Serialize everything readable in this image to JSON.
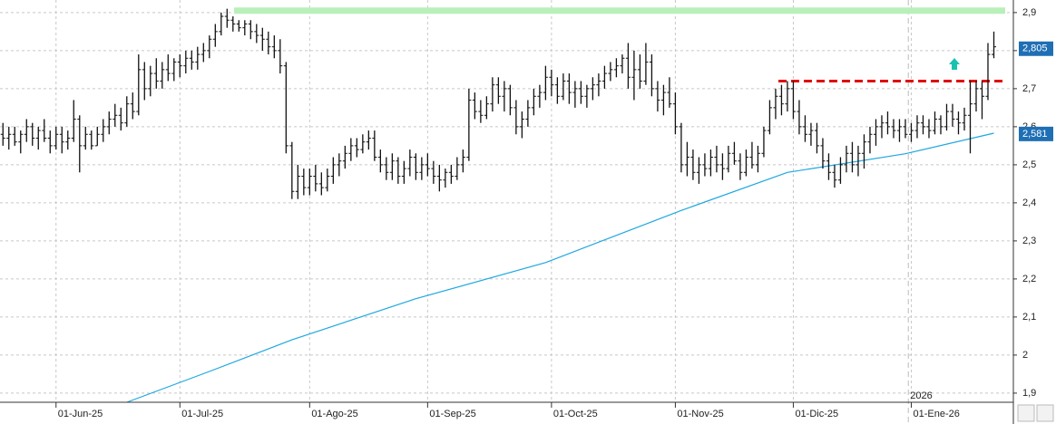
{
  "chart_data": {
    "type": "ohlc",
    "xlim": [
      -0.5,
      171
    ],
    "xticks": [
      {
        "value": 9,
        "label": "01-Jun-25"
      },
      {
        "value": 30,
        "label": "01-Jul-25"
      },
      {
        "value": 52,
        "label": "01-Ago-25"
      },
      {
        "value": 72,
        "label": "01-Sep-25"
      },
      {
        "value": 93,
        "label": "01-Oct-25"
      },
      {
        "value": 114,
        "label": "01-Nov-25"
      },
      {
        "value": 134,
        "label": "01-Dic-25"
      },
      {
        "value": 154,
        "label": "01-Ene-26"
      }
    ],
    "ylim": [
      1.876,
      2.933
    ],
    "yticks": [
      {
        "value": 1.9,
        "label": "1,9"
      },
      {
        "value": 2,
        "label": "2"
      },
      {
        "value": 2.1,
        "label": "2,1"
      },
      {
        "value": 2.2,
        "label": "2,2"
      },
      {
        "value": 2.3,
        "label": "2,3"
      },
      {
        "value": 2.4,
        "label": "2,4"
      },
      {
        "value": 2.5,
        "label": "2,5"
      },
      {
        "value": 2.6,
        "label": "2,6"
      },
      {
        "value": 2.7,
        "label": "2,7"
      },
      {
        "value": 2.8,
        "label": "2,8"
      },
      {
        "value": 2.9,
        "label": "2,9"
      }
    ],
    "grid": true,
    "bar_color": "#111111",
    "ohlc": [
      [
        2.58,
        2.61,
        2.55,
        2.57
      ],
      [
        2.57,
        2.6,
        2.54,
        2.58
      ],
      [
        2.58,
        2.6,
        2.55,
        2.56
      ],
      [
        2.56,
        2.59,
        2.53,
        2.58
      ],
      [
        2.58,
        2.62,
        2.56,
        2.6
      ],
      [
        2.6,
        2.61,
        2.55,
        2.57
      ],
      [
        2.57,
        2.6,
        2.54,
        2.59
      ],
      [
        2.59,
        2.62,
        2.56,
        2.57
      ],
      [
        2.57,
        2.59,
        2.53,
        2.55
      ],
      [
        2.55,
        2.6,
        2.54,
        2.58
      ],
      [
        2.58,
        2.6,
        2.53,
        2.56
      ],
      [
        2.56,
        2.59,
        2.54,
        2.57
      ],
      [
        2.57,
        2.67,
        2.56,
        2.62
      ],
      [
        2.62,
        2.63,
        2.48,
        2.55
      ],
      [
        2.55,
        2.6,
        2.54,
        2.58
      ],
      [
        2.58,
        2.59,
        2.54,
        2.55
      ],
      [
        2.55,
        2.6,
        2.55,
        2.58
      ],
      [
        2.58,
        2.62,
        2.56,
        2.6
      ],
      [
        2.6,
        2.64,
        2.58,
        2.62
      ],
      [
        2.62,
        2.66,
        2.6,
        2.63
      ],
      [
        2.63,
        2.65,
        2.59,
        2.61
      ],
      [
        2.61,
        2.68,
        2.6,
        2.66
      ],
      [
        2.66,
        2.69,
        2.62,
        2.64
      ],
      [
        2.64,
        2.79,
        2.63,
        2.75
      ],
      [
        2.75,
        2.77,
        2.67,
        2.7
      ],
      [
        2.7,
        2.76,
        2.68,
        2.74
      ],
      [
        2.74,
        2.78,
        2.7,
        2.72
      ],
      [
        2.72,
        2.77,
        2.7,
        2.75
      ],
      [
        2.75,
        2.79,
        2.72,
        2.74
      ],
      [
        2.74,
        2.78,
        2.72,
        2.77
      ],
      [
        2.77,
        2.79,
        2.73,
        2.76
      ],
      [
        2.76,
        2.8,
        2.74,
        2.78
      ],
      [
        2.78,
        2.8,
        2.75,
        2.77
      ],
      [
        2.77,
        2.81,
        2.75,
        2.79
      ],
      [
        2.79,
        2.82,
        2.77,
        2.8
      ],
      [
        2.8,
        2.84,
        2.78,
        2.83
      ],
      [
        2.83,
        2.87,
        2.81,
        2.85
      ],
      [
        2.85,
        2.9,
        2.84,
        2.89
      ],
      [
        2.89,
        2.91,
        2.86,
        2.88
      ],
      [
        2.88,
        2.89,
        2.85,
        2.87
      ],
      [
        2.87,
        2.88,
        2.85,
        2.86
      ],
      [
        2.86,
        2.88,
        2.84,
        2.87
      ],
      [
        2.87,
        2.88,
        2.83,
        2.85
      ],
      [
        2.85,
        2.87,
        2.82,
        2.84
      ],
      [
        2.84,
        2.86,
        2.8,
        2.83
      ],
      [
        2.83,
        2.85,
        2.79,
        2.81
      ],
      [
        2.81,
        2.84,
        2.78,
        2.8
      ],
      [
        2.8,
        2.83,
        2.74,
        2.76
      ],
      [
        2.76,
        2.77,
        2.53,
        2.55
      ],
      [
        2.55,
        2.56,
        2.41,
        2.43
      ],
      [
        2.43,
        2.5,
        2.41,
        2.47
      ],
      [
        2.47,
        2.49,
        2.42,
        2.44
      ],
      [
        2.44,
        2.49,
        2.42,
        2.47
      ],
      [
        2.47,
        2.5,
        2.43,
        2.45
      ],
      [
        2.45,
        2.48,
        2.42,
        2.44
      ],
      [
        2.44,
        2.49,
        2.43,
        2.47
      ],
      [
        2.47,
        2.52,
        2.45,
        2.5
      ],
      [
        2.5,
        2.53,
        2.47,
        2.51
      ],
      [
        2.51,
        2.55,
        2.49,
        2.53
      ],
      [
        2.53,
        2.57,
        2.51,
        2.55
      ],
      [
        2.55,
        2.57,
        2.52,
        2.54
      ],
      [
        2.54,
        2.58,
        2.53,
        2.56
      ],
      [
        2.56,
        2.59,
        2.54,
        2.57
      ],
      [
        2.57,
        2.59,
        2.51,
        2.52
      ],
      [
        2.52,
        2.54,
        2.48,
        2.5
      ],
      [
        2.5,
        2.52,
        2.46,
        2.48
      ],
      [
        2.48,
        2.53,
        2.46,
        2.51
      ],
      [
        2.51,
        2.52,
        2.45,
        2.47
      ],
      [
        2.47,
        2.51,
        2.45,
        2.49
      ],
      [
        2.49,
        2.54,
        2.47,
        2.52
      ],
      [
        2.52,
        2.53,
        2.46,
        2.48
      ],
      [
        2.48,
        2.52,
        2.46,
        2.5
      ],
      [
        2.5,
        2.53,
        2.47,
        2.49
      ],
      [
        2.49,
        2.51,
        2.45,
        2.47
      ],
      [
        2.47,
        2.5,
        2.43,
        2.46
      ],
      [
        2.46,
        2.49,
        2.44,
        2.48
      ],
      [
        2.48,
        2.5,
        2.45,
        2.47
      ],
      [
        2.47,
        2.52,
        2.46,
        2.5
      ],
      [
        2.5,
        2.54,
        2.48,
        2.52
      ],
      [
        2.52,
        2.7,
        2.51,
        2.67
      ],
      [
        2.67,
        2.69,
        2.62,
        2.64
      ],
      [
        2.64,
        2.67,
        2.61,
        2.63
      ],
      [
        2.63,
        2.68,
        2.62,
        2.66
      ],
      [
        2.66,
        2.73,
        2.64,
        2.71
      ],
      [
        2.71,
        2.73,
        2.66,
        2.68
      ],
      [
        2.68,
        2.72,
        2.64,
        2.7
      ],
      [
        2.7,
        2.71,
        2.63,
        2.65
      ],
      [
        2.65,
        2.67,
        2.58,
        2.6
      ],
      [
        2.6,
        2.64,
        2.57,
        2.62
      ],
      [
        2.62,
        2.67,
        2.6,
        2.65
      ],
      [
        2.65,
        2.7,
        2.63,
        2.68
      ],
      [
        2.68,
        2.71,
        2.65,
        2.69
      ],
      [
        2.69,
        2.76,
        2.67,
        2.73
      ],
      [
        2.73,
        2.75,
        2.68,
        2.71
      ],
      [
        2.71,
        2.73,
        2.66,
        2.68
      ],
      [
        2.68,
        2.74,
        2.67,
        2.72
      ],
      [
        2.72,
        2.74,
        2.66,
        2.69
      ],
      [
        2.69,
        2.72,
        2.65,
        2.7
      ],
      [
        2.7,
        2.72,
        2.66,
        2.68
      ],
      [
        2.68,
        2.71,
        2.65,
        2.7
      ],
      [
        2.7,
        2.73,
        2.67,
        2.71
      ],
      [
        2.71,
        2.74,
        2.68,
        2.72
      ],
      [
        2.72,
        2.76,
        2.7,
        2.74
      ],
      [
        2.74,
        2.77,
        2.72,
        2.75
      ],
      [
        2.75,
        2.78,
        2.73,
        2.76
      ],
      [
        2.76,
        2.79,
        2.74,
        2.78
      ],
      [
        2.78,
        2.82,
        2.7,
        2.73
      ],
      [
        2.73,
        2.8,
        2.67,
        2.75
      ],
      [
        2.75,
        2.79,
        2.7,
        2.72
      ],
      [
        2.72,
        2.82,
        2.71,
        2.77
      ],
      [
        2.77,
        2.79,
        2.68,
        2.7
      ],
      [
        2.7,
        2.72,
        2.64,
        2.67
      ],
      [
        2.67,
        2.71,
        2.63,
        2.69
      ],
      [
        2.69,
        2.73,
        2.65,
        2.66
      ],
      [
        2.66,
        2.69,
        2.58,
        2.6
      ],
      [
        2.6,
        2.61,
        2.48,
        2.5
      ],
      [
        2.5,
        2.56,
        2.47,
        2.52
      ],
      [
        2.52,
        2.54,
        2.46,
        2.48
      ],
      [
        2.48,
        2.52,
        2.45,
        2.5
      ],
      [
        2.5,
        2.53,
        2.47,
        2.49
      ],
      [
        2.49,
        2.54,
        2.47,
        2.52
      ],
      [
        2.52,
        2.55,
        2.48,
        2.5
      ],
      [
        2.5,
        2.53,
        2.46,
        2.49
      ],
      [
        2.49,
        2.55,
        2.48,
        2.53
      ],
      [
        2.53,
        2.56,
        2.5,
        2.51
      ],
      [
        2.51,
        2.53,
        2.46,
        2.48
      ],
      [
        2.48,
        2.54,
        2.47,
        2.52
      ],
      [
        2.52,
        2.56,
        2.49,
        2.5
      ],
      [
        2.5,
        2.55,
        2.48,
        2.53
      ],
      [
        2.53,
        2.6,
        2.52,
        2.59
      ],
      [
        2.59,
        2.67,
        2.58,
        2.65
      ],
      [
        2.65,
        2.7,
        2.62,
        2.68
      ],
      [
        2.68,
        2.71,
        2.63,
        2.66
      ],
      [
        2.66,
        2.72,
        2.64,
        2.7
      ],
      [
        2.7,
        2.72,
        2.62,
        2.64
      ],
      [
        2.64,
        2.67,
        2.58,
        2.6
      ],
      [
        2.6,
        2.63,
        2.56,
        2.58
      ],
      [
        2.58,
        2.61,
        2.55,
        2.59
      ],
      [
        2.59,
        2.61,
        2.53,
        2.55
      ],
      [
        2.55,
        2.57,
        2.49,
        2.51
      ],
      [
        2.51,
        2.53,
        2.46,
        2.48
      ],
      [
        2.48,
        2.5,
        2.44,
        2.46
      ],
      [
        2.46,
        2.52,
        2.45,
        2.5
      ],
      [
        2.5,
        2.55,
        2.48,
        2.53
      ],
      [
        2.53,
        2.56,
        2.48,
        2.5
      ],
      [
        2.5,
        2.55,
        2.47,
        2.53
      ],
      [
        2.53,
        2.58,
        2.49,
        2.56
      ],
      [
        2.56,
        2.6,
        2.53,
        2.58
      ],
      [
        2.58,
        2.62,
        2.55,
        2.6
      ],
      [
        2.6,
        2.63,
        2.57,
        2.61
      ],
      [
        2.61,
        2.64,
        2.58,
        2.6
      ],
      [
        2.6,
        2.62,
        2.57,
        2.59
      ],
      [
        2.59,
        2.62,
        2.56,
        2.6
      ],
      [
        2.6,
        2.62,
        2.57,
        2.58
      ],
      [
        2.58,
        2.61,
        2.56,
        2.59
      ],
      [
        2.59,
        2.63,
        2.57,
        2.61
      ],
      [
        2.61,
        2.63,
        2.58,
        2.6
      ],
      [
        2.6,
        2.62,
        2.57,
        2.59
      ],
      [
        2.59,
        2.64,
        2.58,
        2.62
      ],
      [
        2.62,
        2.63,
        2.58,
        2.6
      ],
      [
        2.6,
        2.66,
        2.59,
        2.64
      ],
      [
        2.64,
        2.66,
        2.6,
        2.62
      ],
      [
        2.62,
        2.64,
        2.58,
        2.61
      ],
      [
        2.61,
        2.65,
        2.59,
        2.63
      ],
      [
        2.63,
        2.72,
        2.53,
        2.66
      ],
      [
        2.66,
        2.72,
        2.64,
        2.7
      ],
      [
        2.7,
        2.72,
        2.62,
        2.68
      ],
      [
        2.68,
        2.82,
        2.67,
        2.79
      ],
      [
        2.79,
        2.85,
        2.78,
        2.81
      ]
    ],
    "ma": {
      "color": "#1ea7e1",
      "x": [
        21,
        35,
        49,
        70,
        92,
        115,
        133,
        153,
        168
      ],
      "values": [
        1.876,
        1.957,
        2.04,
        2.148,
        2.243,
        2.38,
        2.48,
        2.529,
        2.583
      ]
    },
    "resistance": {
      "value": 2.72,
      "color": "#e01010"
    },
    "high_level": {
      "value": 2.905,
      "color": "#b9f0b9"
    },
    "year_marker": {
      "value": 153.5,
      "label": "2026"
    },
    "price_labels": [
      {
        "value": 2.805,
        "label": "2,805",
        "color": "#1f6fb5"
      },
      {
        "value": 2.581,
        "label": "2,581",
        "color": "#1f6fb5"
      }
    ]
  }
}
